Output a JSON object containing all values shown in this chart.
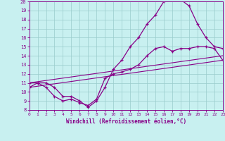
{
  "xlabel": "Windchill (Refroidissement éolien,°C)",
  "xlim": [
    0,
    23
  ],
  "ylim": [
    8,
    20
  ],
  "xticks": [
    0,
    1,
    2,
    3,
    4,
    5,
    6,
    7,
    8,
    9,
    10,
    11,
    12,
    13,
    14,
    15,
    16,
    17,
    18,
    19,
    20,
    21,
    22,
    23
  ],
  "yticks": [
    8,
    9,
    10,
    11,
    12,
    13,
    14,
    15,
    16,
    17,
    18,
    19,
    20
  ],
  "bg_color": "#c8f0f0",
  "line_color": "#880088",
  "grid_color": "#99cccc",
  "line1_x": [
    0,
    1,
    2,
    3,
    4,
    5,
    6,
    7,
    8,
    9,
    10,
    11,
    12,
    13,
    14,
    15,
    16,
    17,
    18,
    19,
    20,
    21,
    22,
    23
  ],
  "line1_y": [
    11,
    11,
    11,
    10.5,
    9.5,
    9.5,
    9.0,
    8.3,
    9.0,
    10.5,
    12.5,
    13.5,
    15.0,
    16.0,
    17.5,
    18.5,
    20.0,
    20.2,
    20.2,
    19.5,
    17.5,
    16.0,
    15.0,
    14.8
  ],
  "line2_x": [
    0,
    1,
    2,
    3,
    4,
    5,
    6,
    7,
    8,
    9,
    10,
    11,
    12,
    13,
    14,
    15,
    16,
    17,
    18,
    19,
    20,
    21,
    22,
    23
  ],
  "line2_y": [
    10.5,
    11.0,
    10.5,
    9.5,
    9.0,
    9.2,
    8.8,
    8.5,
    9.2,
    11.5,
    12.0,
    12.2,
    12.5,
    13.0,
    14.0,
    14.8,
    15.0,
    14.5,
    14.8,
    14.8,
    15.0,
    15.0,
    14.8,
    13.5
  ],
  "line3_x": [
    0,
    23
  ],
  "line3_y": [
    11,
    14.0
  ],
  "line4_x": [
    0,
    23
  ],
  "line4_y": [
    10.5,
    13.5
  ]
}
